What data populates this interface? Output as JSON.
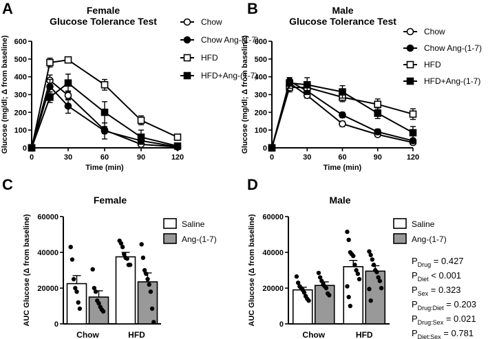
{
  "chart_data": [
    {
      "panel": "A",
      "type": "line",
      "title": [
        "Female",
        "Glucose Tolerance Test"
      ],
      "xlabel": "Time (min)",
      "ylabel": "Glucose (mg/dl; Δ from baseline)",
      "x": [
        0,
        15,
        30,
        60,
        90,
        120
      ],
      "xlim": [
        0,
        120
      ],
      "ylim": [
        0,
        600
      ],
      "xticks": [
        0,
        30,
        60,
        90,
        120
      ],
      "yticks": [
        0,
        100,
        200,
        300,
        400,
        500,
        600
      ],
      "series": [
        {
          "name": "Chow",
          "marker": "circle-open",
          "values": [
            0,
            380,
            295,
            100,
            20,
            5
          ],
          "errors": [
            0,
            30,
            25,
            20,
            10,
            5
          ]
        },
        {
          "name": "Chow Ang-(1-7)",
          "marker": "circle-filled",
          "values": [
            0,
            345,
            235,
            95,
            40,
            5
          ],
          "errors": [
            0,
            40,
            40,
            45,
            20,
            5
          ]
        },
        {
          "name": "HFD",
          "marker": "square-open",
          "values": [
            0,
            480,
            495,
            355,
            155,
            60
          ],
          "errors": [
            0,
            25,
            15,
            30,
            25,
            10
          ]
        },
        {
          "name": "HFD+Ang-(1-7)",
          "marker": "square-filled",
          "values": [
            0,
            285,
            365,
            200,
            60,
            10
          ],
          "errors": [
            0,
            30,
            50,
            60,
            40,
            5
          ]
        }
      ]
    },
    {
      "panel": "B",
      "type": "line",
      "title": [
        "Male",
        "Glucose Tolerance Test"
      ],
      "xlabel": "Time (min)",
      "ylabel": "Glucose (mg/dl; Δ from baseline)",
      "x": [
        0,
        15,
        30,
        60,
        90,
        120
      ],
      "xlim": [
        0,
        120
      ],
      "ylim": [
        0,
        600
      ],
      "xticks": [
        0,
        30,
        60,
        90,
        120
      ],
      "yticks": [
        0,
        100,
        200,
        300,
        400,
        500,
        600
      ],
      "series": [
        {
          "name": "Chow",
          "marker": "circle-open",
          "values": [
            0,
            365,
            295,
            135,
            75,
            30
          ],
          "errors": [
            0,
            20,
            15,
            15,
            10,
            5
          ]
        },
        {
          "name": "Chow Ang-(1-7)",
          "marker": "circle-filled",
          "values": [
            0,
            375,
            320,
            185,
            90,
            40
          ],
          "errors": [
            0,
            20,
            20,
            15,
            15,
            5
          ]
        },
        {
          "name": "HFD",
          "marker": "square-open",
          "values": [
            0,
            340,
            340,
            285,
            245,
            190
          ],
          "errors": [
            0,
            25,
            20,
            25,
            30,
            30
          ]
        },
        {
          "name": "HFD+Ang-(1-7)",
          "marker": "square-filled",
          "values": [
            0,
            365,
            355,
            315,
            195,
            85
          ],
          "errors": [
            0,
            30,
            40,
            35,
            30,
            35
          ]
        }
      ]
    },
    {
      "panel": "C",
      "type": "bar",
      "title": "Female",
      "xlabel": "",
      "ylabel": "AUC Glucose (Δ from baseline)",
      "categories": [
        "Chow",
        "HFD"
      ],
      "ylim": [
        0,
        60000
      ],
      "yticks": [
        0,
        20000,
        40000,
        60000
      ],
      "series": [
        {
          "name": "Saline",
          "color": "#ffffff",
          "values": [
            22500,
            37500
          ],
          "errors": [
            4500,
            2500
          ],
          "points": [
            [
              43000,
              36000,
              25000,
              20000,
              18000,
              12000,
              8500
            ],
            [
              46500,
              45000,
              43000,
              39000,
              37000,
              36500,
              33000,
              33000
            ]
          ]
        },
        {
          "name": "Ang-(1-7)",
          "color": "#999999",
          "values": [
            15000,
            23500
          ],
          "errors": [
            3500,
            5000
          ],
          "points": [
            [
              30500,
              20000,
              18000,
              13000,
              11500,
              9500,
              8000,
              7000
            ],
            [
              44500,
              37000,
              30000,
              28000,
              25000,
              22000,
              18000,
              8500,
              1000
            ]
          ]
        }
      ]
    },
    {
      "panel": "D",
      "type": "bar",
      "title": "Male",
      "xlabel": "",
      "ylabel": "AUC Glucose (Δ from baseline)",
      "categories": [
        "Chow",
        "HFD"
      ],
      "ylim": [
        0,
        60000
      ],
      "yticks": [
        0,
        20000,
        40000,
        60000
      ],
      "series": [
        {
          "name": "Saline",
          "color": "#ffffff",
          "values": [
            19000,
            32000
          ],
          "errors": [
            1500,
            3500
          ],
          "points": [
            [
              26500,
              23000,
              21000,
              20000,
              19000,
              17500,
              15500,
              14000,
              13000
            ],
            [
              51500,
              47000,
              40000,
              39000,
              38000,
              33000,
              30000,
              28000,
              25000,
              21000,
              15000,
              10000
            ]
          ]
        },
        {
          "name": "Ang-(1-7)",
          "color": "#999999",
          "values": [
            21500,
            29500
          ],
          "errors": [
            2000,
            3000
          ],
          "points": [
            [
              28500,
              26000,
              24000,
              22000,
              21000,
              20000,
              17000,
              16000
            ],
            [
              40500,
              38500,
              36000,
              33000,
              30000,
              29000,
              26000,
              24000,
              20000,
              19500,
              13000
            ]
          ]
        }
      ],
      "stats": [
        {
          "sub": "Drug",
          "text": " = 0.427"
        },
        {
          "sub": "Diet",
          "text": " < 0.001"
        },
        {
          "sub": "Sex",
          "text": " = 0.323"
        },
        {
          "sub": "Drug:Diet",
          "text": " = 0.203"
        },
        {
          "sub": "Drug:Sex",
          "text": " = 0.021"
        },
        {
          "sub": "Diet:Sex",
          "text": " = 0.781"
        }
      ]
    }
  ]
}
